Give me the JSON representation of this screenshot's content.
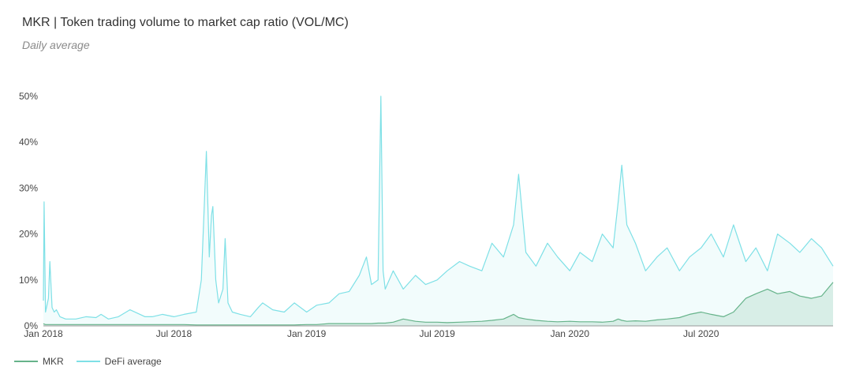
{
  "chart_data": {
    "type": "area",
    "title": "MKR | Token trading volume to market cap ratio (VOL/MC)",
    "subtitle": "Daily average",
    "xlabel": "",
    "ylabel": "",
    "x_ticks": [
      "Jan 2018",
      "Jul 2018",
      "Jan 2019",
      "Jul 2019",
      "Jan 2020",
      "Jul 2020"
    ],
    "y_ticks": [
      "0%",
      "10%",
      "20%",
      "30%",
      "40%",
      "50%"
    ],
    "xlim": [
      "2018-01-01",
      "2020-12-31"
    ],
    "ylim": [
      0,
      50
    ],
    "y_unit": "%",
    "grid": false,
    "legend_position": "bottom-left",
    "x": [
      "2018-01-01",
      "2018-01-02",
      "2018-01-04",
      "2018-01-08",
      "2018-01-10",
      "2018-01-13",
      "2018-01-16",
      "2018-01-19",
      "2018-01-24",
      "2018-02-01",
      "2018-02-15",
      "2018-03-01",
      "2018-03-15",
      "2018-03-22",
      "2018-04-01",
      "2018-04-15",
      "2018-05-01",
      "2018-05-15",
      "2018-05-22",
      "2018-06-01",
      "2018-06-15",
      "2018-07-01",
      "2018-07-15",
      "2018-08-01",
      "2018-08-08",
      "2018-08-12",
      "2018-08-15",
      "2018-08-19",
      "2018-08-22",
      "2018-08-24",
      "2018-08-28",
      "2018-09-01",
      "2018-09-07",
      "2018-09-10",
      "2018-09-14",
      "2018-09-20",
      "2018-10-01",
      "2018-10-15",
      "2018-10-26",
      "2018-11-01",
      "2018-11-15",
      "2018-12-01",
      "2018-12-15",
      "2019-01-01",
      "2019-01-15",
      "2019-02-01",
      "2019-02-15",
      "2019-03-01",
      "2019-03-15",
      "2019-03-25",
      "2019-04-01",
      "2019-04-10",
      "2019-04-14",
      "2019-04-17",
      "2019-04-20",
      "2019-05-01",
      "2019-05-15",
      "2019-06-01",
      "2019-06-15",
      "2019-07-01",
      "2019-07-15",
      "2019-08-01",
      "2019-08-15",
      "2019-09-01",
      "2019-09-15",
      "2019-10-01",
      "2019-10-15",
      "2019-10-22",
      "2019-11-01",
      "2019-11-15",
      "2019-12-01",
      "2019-12-15",
      "2020-01-01",
      "2020-01-15",
      "2020-02-01",
      "2020-02-15",
      "2020-03-01",
      "2020-03-08",
      "2020-03-13",
      "2020-03-20",
      "2020-04-01",
      "2020-04-15",
      "2020-05-01",
      "2020-05-15",
      "2020-06-01",
      "2020-06-15",
      "2020-07-01",
      "2020-07-15",
      "2020-08-01",
      "2020-08-15",
      "2020-09-01",
      "2020-09-15",
      "2020-10-01",
      "2020-10-15",
      "2020-11-01",
      "2020-11-15",
      "2020-12-01",
      "2020-12-15",
      "2020-12-31"
    ],
    "series": [
      {
        "name": "MKR",
        "color": "#66b38a",
        "values": [
          0.5,
          0.4,
          0.3,
          0.3,
          0.3,
          0.3,
          0.3,
          0.3,
          0.3,
          0.3,
          0.3,
          0.3,
          0.3,
          0.3,
          0.3,
          0.3,
          0.3,
          0.3,
          0.3,
          0.3,
          0.3,
          0.3,
          0.3,
          0.2,
          0.2,
          0.2,
          0.2,
          0.2,
          0.2,
          0.2,
          0.2,
          0.2,
          0.2,
          0.2,
          0.2,
          0.2,
          0.2,
          0.2,
          0.2,
          0.2,
          0.2,
          0.2,
          0.2,
          0.3,
          0.3,
          0.5,
          0.5,
          0.5,
          0.5,
          0.5,
          0.5,
          0.6,
          0.6,
          0.6,
          0.6,
          0.8,
          1.5,
          1.0,
          0.8,
          0.8,
          0.7,
          0.8,
          0.9,
          1.0,
          1.2,
          1.5,
          2.5,
          1.8,
          1.5,
          1.2,
          1.0,
          0.9,
          1.0,
          0.9,
          0.9,
          0.8,
          1.0,
          1.5,
          1.2,
          1.0,
          1.1,
          1.0,
          1.3,
          1.5,
          1.8,
          2.5,
          3.0,
          2.5,
          2.0,
          3.0,
          6.0,
          7.0,
          8.0,
          7.0,
          7.5,
          6.5,
          6.0,
          6.5,
          9.5
        ]
      },
      {
        "name": "DeFi average",
        "color": "#7ee0e6",
        "values": [
          5.5,
          27.0,
          3.0,
          6.0,
          14.0,
          4.0,
          3.0,
          3.5,
          2.0,
          1.5,
          1.5,
          2.0,
          1.8,
          2.5,
          1.5,
          2.0,
          3.5,
          2.5,
          2.0,
          2.0,
          2.5,
          2.0,
          2.5,
          3.0,
          10.0,
          26.0,
          38.0,
          15.0,
          24.0,
          26.0,
          10.0,
          5.0,
          8.0,
          19.0,
          5.0,
          3.0,
          2.5,
          2.0,
          4.0,
          5.0,
          3.5,
          3.0,
          5.0,
          3.0,
          4.5,
          5.0,
          7.0,
          7.5,
          11.0,
          15.0,
          9.0,
          10.0,
          50.0,
          12.0,
          8.0,
          12.0,
          8.0,
          11.0,
          9.0,
          10.0,
          12.0,
          14.0,
          13.0,
          12.0,
          18.0,
          15.0,
          22.0,
          33.0,
          16.0,
          13.0,
          18.0,
          15.0,
          12.0,
          16.0,
          14.0,
          20.0,
          17.0,
          27.0,
          35.0,
          22.0,
          18.0,
          12.0,
          15.0,
          17.0,
          12.0,
          15.0,
          17.0,
          20.0,
          15.0,
          22.0,
          14.0,
          17.0,
          12.0,
          20.0,
          18.0,
          16.0,
          19.0,
          17.0,
          13.0
        ]
      }
    ]
  }
}
